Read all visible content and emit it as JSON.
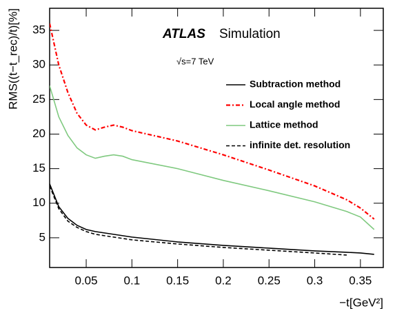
{
  "chart_data": {
    "type": "line",
    "experiment": "ATLAS",
    "label": "Simulation",
    "energy": "√s=7 TeV",
    "y_label": "RMS((t−t_rec)/t)[%]",
    "x_label": "−t[GeV²]",
    "x": [
      0.01,
      0.02,
      0.03,
      0.04,
      0.05,
      0.06,
      0.07,
      0.08,
      0.09,
      0.1,
      0.15,
      0.2,
      0.25,
      0.3,
      0.335,
      0.35,
      0.365
    ],
    "series": [
      {
        "name": "Subtraction method",
        "color": "#000000",
        "style": "solid",
        "values": [
          12.8,
          9.5,
          7.8,
          6.8,
          6.2,
          5.9,
          5.7,
          5.5,
          5.3,
          5.1,
          4.4,
          3.9,
          3.5,
          3.1,
          2.9,
          2.8,
          2.6
        ]
      },
      {
        "name": "Local angle method",
        "color": "#ff0000",
        "style": "dashdot",
        "values": [
          36,
          30,
          26,
          23,
          21.3,
          20.6,
          21,
          21.3,
          21,
          20.5,
          19,
          17,
          14.8,
          12.5,
          10.5,
          9.3,
          7.7
        ]
      },
      {
        "name": "Lattice method",
        "color": "#7fc97f",
        "style": "solid",
        "values": [
          27,
          22.5,
          19.8,
          18,
          17,
          16.5,
          16.8,
          17,
          16.8,
          16.3,
          15,
          13.3,
          11.8,
          10.2,
          8.8,
          8,
          6.2
        ]
      },
      {
        "name": "infinite det. resolution",
        "color": "#000000",
        "style": "dashed",
        "values": [
          12.5,
          9.2,
          7.4,
          6.5,
          5.9,
          5.5,
          5.3,
          5.1,
          4.9,
          4.7,
          4.1,
          3.6,
          3.2,
          2.8,
          2.5,
          null,
          null
        ]
      }
    ],
    "xlim": [
      0.01,
      0.375
    ],
    "ylim": [
      0.7,
      38.2
    ],
    "xticks": [
      0.05,
      0.1,
      0.15,
      0.2,
      0.25,
      0.3,
      0.35
    ],
    "yticks": [
      5,
      10,
      15,
      20,
      25,
      30,
      35
    ]
  }
}
